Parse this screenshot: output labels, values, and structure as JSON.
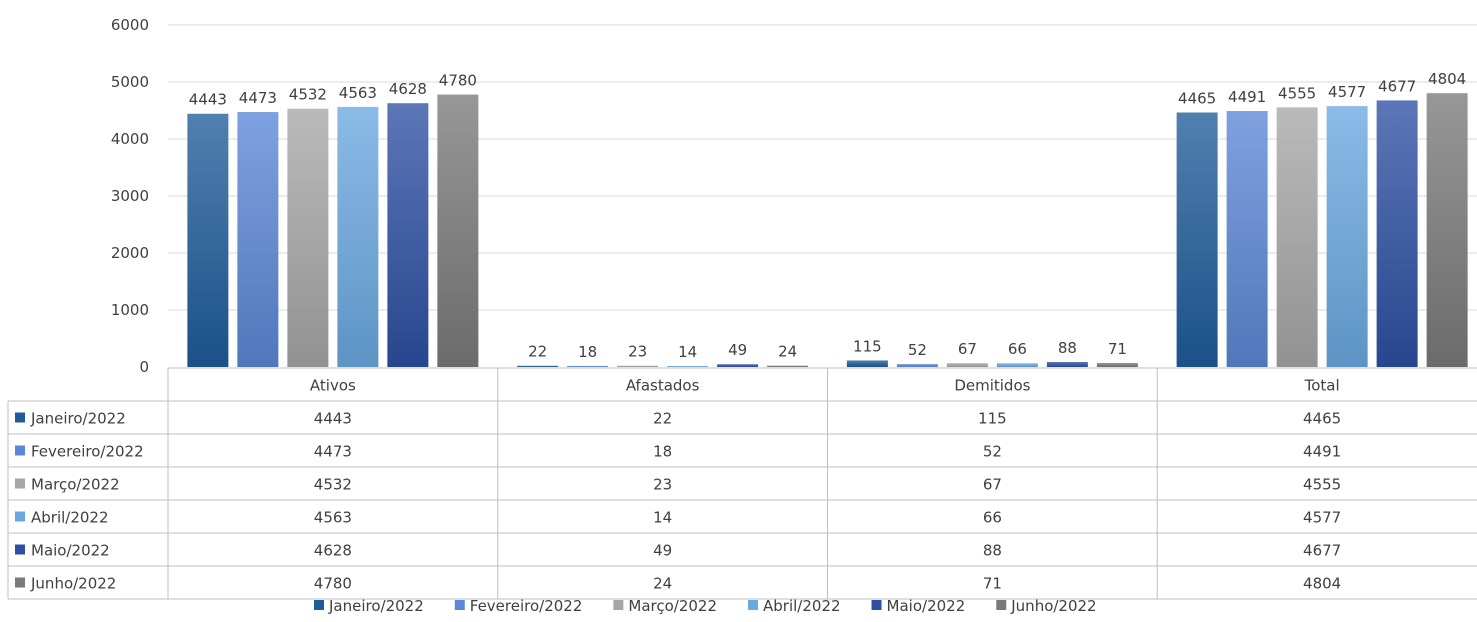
{
  "chart_data": {
    "type": "bar",
    "title": "",
    "xlabel": "",
    "ylabel": "",
    "ylim": [
      0,
      6000
    ],
    "yticks": [
      0,
      1000,
      2000,
      3000,
      4000,
      5000,
      6000
    ],
    "grid": true,
    "legend_position": "bottom",
    "data_table": true,
    "categories": [
      "Ativos",
      "Afastados",
      "Demitidos",
      "Total"
    ],
    "series": [
      {
        "name": "Janeiro/2022",
        "color": "#1F5C99",
        "values": [
          4443,
          22,
          115,
          4465
        ]
      },
      {
        "name": "Fevereiro/2022",
        "color": "#5B87D6",
        "values": [
          4473,
          18,
          52,
          4491
        ]
      },
      {
        "name": "Março/2022",
        "color": "#A6A6A6",
        "values": [
          4532,
          23,
          67,
          4555
        ]
      },
      {
        "name": "Abril/2022",
        "color": "#6AA8E0",
        "values": [
          4563,
          14,
          66,
          4577
        ]
      },
      {
        "name": "Maio/2022",
        "color": "#2E4FA3",
        "values": [
          4628,
          49,
          88,
          4677
        ]
      },
      {
        "name": "Junho/2022",
        "color": "#7A7A7A",
        "values": [
          4780,
          24,
          71,
          4804
        ]
      }
    ]
  }
}
